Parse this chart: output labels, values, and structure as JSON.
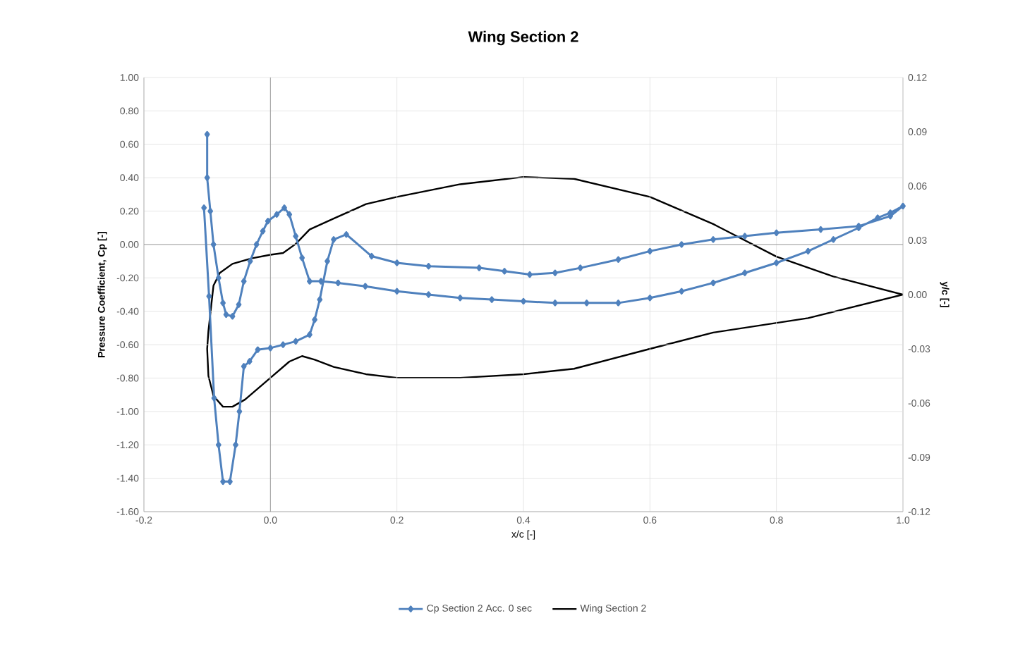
{
  "chart_data": {
    "type": "line",
    "title": "Wing Section 2",
    "xlabel": "x/c [-]",
    "ylabel": "Pressure Coefficient, Cp [-]",
    "y2label": "y/c [-]",
    "series": [
      {
        "name": "Cp Section 2 Acc. 0 sec",
        "color": "#4f81bd",
        "marker": "diamond",
        "x": [
          -0.1,
          -0.1,
          -0.095,
          -0.09,
          -0.082,
          -0.075,
          -0.07,
          -0.06,
          -0.05,
          -0.042,
          -0.032,
          -0.022,
          -0.012,
          -0.004,
          0.01,
          0.022,
          0.03,
          0.04,
          0.05,
          0.062,
          0.08,
          0.107,
          0.15,
          0.2,
          0.25,
          0.3,
          0.35,
          0.4,
          0.45,
          0.5,
          0.55,
          0.6,
          0.65,
          0.7,
          0.75,
          0.8,
          0.85,
          0.89,
          0.93,
          0.96,
          0.98,
          1.0,
          0.98,
          0.93,
          0.87,
          0.8,
          0.75,
          0.7,
          0.65,
          0.6,
          0.55,
          0.49,
          0.45,
          0.41,
          0.37,
          0.33,
          0.25,
          0.2,
          0.16,
          0.12,
          0.1,
          0.09,
          0.078,
          0.07,
          0.062,
          0.04,
          0.02,
          0.0,
          -0.02,
          -0.033,
          -0.042,
          -0.049,
          -0.055,
          -0.064,
          -0.075,
          -0.082,
          -0.089,
          -0.097,
          -0.105
        ],
        "values": [
          0.66,
          0.4,
          0.2,
          0.0,
          -0.2,
          -0.35,
          -0.42,
          -0.43,
          -0.36,
          -0.22,
          -0.1,
          0.0,
          0.08,
          0.14,
          0.18,
          0.22,
          0.18,
          0.05,
          -0.08,
          -0.22,
          -0.22,
          -0.23,
          -0.25,
          -0.28,
          -0.3,
          -0.32,
          -0.33,
          -0.34,
          -0.35,
          -0.35,
          -0.35,
          -0.32,
          -0.28,
          -0.23,
          -0.17,
          -0.11,
          -0.04,
          0.03,
          0.1,
          0.16,
          0.19,
          0.23,
          0.17,
          0.11,
          0.09,
          0.07,
          0.05,
          0.03,
          0.0,
          -0.04,
          -0.09,
          -0.14,
          -0.17,
          -0.18,
          -0.16,
          -0.14,
          -0.13,
          -0.11,
          -0.07,
          0.06,
          0.03,
          -0.1,
          -0.33,
          -0.45,
          -0.54,
          -0.58,
          -0.6,
          -0.62,
          -0.63,
          -0.7,
          -0.73,
          -1.0,
          -1.2,
          -1.42,
          -1.42,
          -1.2,
          -0.92,
          -0.31,
          0.22
        ]
      },
      {
        "name": "Wing Section 2",
        "color": "#000000",
        "marker": "none",
        "axis": "y2",
        "x": [
          1.0,
          0.89,
          0.8,
          0.7,
          0.6,
          0.48,
          0.4,
          0.3,
          0.2,
          0.151,
          0.1,
          0.062,
          0.04,
          0.02,
          0.0,
          -0.03,
          -0.06,
          -0.08,
          -0.09,
          -0.098,
          -0.1,
          null,
          -0.1,
          -0.098,
          -0.09,
          -0.075,
          -0.06,
          -0.04,
          0.0,
          0.03,
          0.05,
          0.07,
          0.1,
          0.151,
          0.2,
          0.3,
          0.4,
          0.48,
          0.6,
          0.7,
          0.85,
          1.0
        ],
        "values": [
          0.0,
          0.01,
          0.021,
          0.039,
          0.054,
          0.064,
          0.065,
          0.061,
          0.054,
          0.05,
          0.042,
          0.036,
          0.028,
          0.023,
          0.022,
          0.02,
          0.017,
          0.012,
          0.005,
          -0.02,
          -0.03,
          null,
          -0.03,
          -0.045,
          -0.056,
          -0.062,
          -0.062,
          -0.058,
          -0.046,
          -0.037,
          -0.034,
          -0.036,
          -0.04,
          -0.044,
          -0.046,
          -0.046,
          -0.044,
          -0.041,
          -0.03,
          -0.021,
          -0.013,
          0.0
        ]
      }
    ],
    "xlim": [
      -0.2,
      1.0
    ],
    "xticks": [
      -0.2,
      {
        "value": 0,
        "label": "0.0"
      },
      0.2,
      0.4,
      0.6,
      0.8,
      {
        "value": 1,
        "label": "1.0"
      }
    ],
    "ylim": [
      -1.6,
      1.0
    ],
    "yticks": [
      {
        "value": -1.6,
        "label": "-1.60"
      },
      {
        "value": -1.4,
        "label": "-1.40"
      },
      {
        "value": -1.2,
        "label": "-1.20"
      },
      {
        "value": -1.0,
        "label": "-1.00"
      },
      {
        "value": -0.8,
        "label": "-0.80"
      },
      {
        "value": -0.6,
        "label": "-0.60"
      },
      {
        "value": -0.4,
        "label": "-0.40"
      },
      {
        "value": -0.2,
        "label": "-0.20"
      },
      {
        "value": 0,
        "label": "0.00"
      },
      {
        "value": 0.2,
        "label": "0.20"
      },
      {
        "value": 0.4,
        "label": "0.40"
      },
      {
        "value": 0.6,
        "label": "0.60"
      },
      {
        "value": 0.8,
        "label": "0.80"
      },
      {
        "value": 1.0,
        "label": "1.00"
      }
    ],
    "y2lim": [
      -0.12,
      0.12
    ],
    "y2ticks": [
      -0.12,
      -0.09,
      -0.06,
      -0.03,
      {
        "value": 0,
        "label": "0.00"
      },
      0.03,
      0.06,
      0.09,
      0.12
    ],
    "grid": true,
    "legend": "bottom",
    "line_style": "solid"
  }
}
